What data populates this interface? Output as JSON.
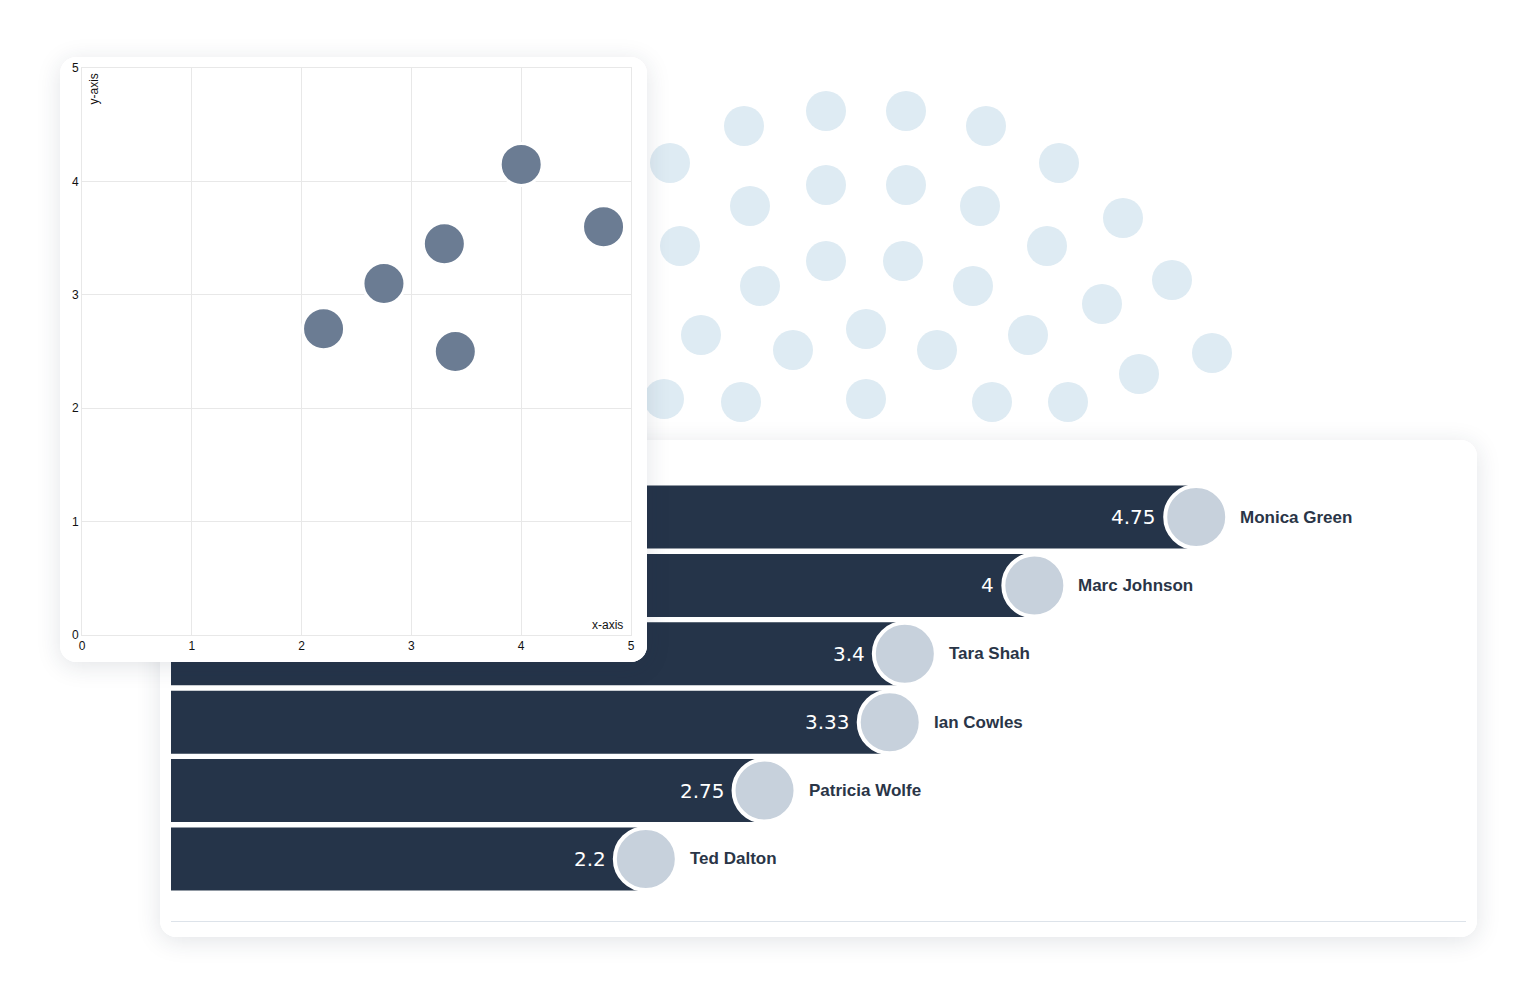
{
  "chart_data": [
    {
      "type": "scatter",
      "x": [
        2.2,
        2.75,
        3.3,
        3.4,
        4,
        4.75
      ],
      "values": [
        2.7,
        3.1,
        3.45,
        2.5,
        4.15,
        3.6
      ],
      "xlabel": "x-axis",
      "ylabel": "y-axis",
      "xlim": [
        0,
        5
      ],
      "ylim": [
        0,
        5
      ],
      "xticks": [
        0,
        1,
        2,
        3,
        4,
        5
      ],
      "yticks": [
        0,
        1,
        2,
        3,
        4,
        5
      ],
      "grid": true,
      "color": "#6b7c93",
      "marker": "circle"
    },
    {
      "type": "bar",
      "orientation": "horizontal",
      "categories": [
        "Monica Green",
        "Marc Johnson",
        "Tara Shah",
        "Ian Cowles",
        "Patricia Wolfe",
        "Ted Dalton"
      ],
      "values": [
        4.75,
        4,
        3.4,
        3.33,
        2.75,
        2.2
      ],
      "xlim": [
        0,
        6
      ],
      "data_labels": true,
      "tick_labels": false,
      "color": "#253449"
    }
  ]
}
